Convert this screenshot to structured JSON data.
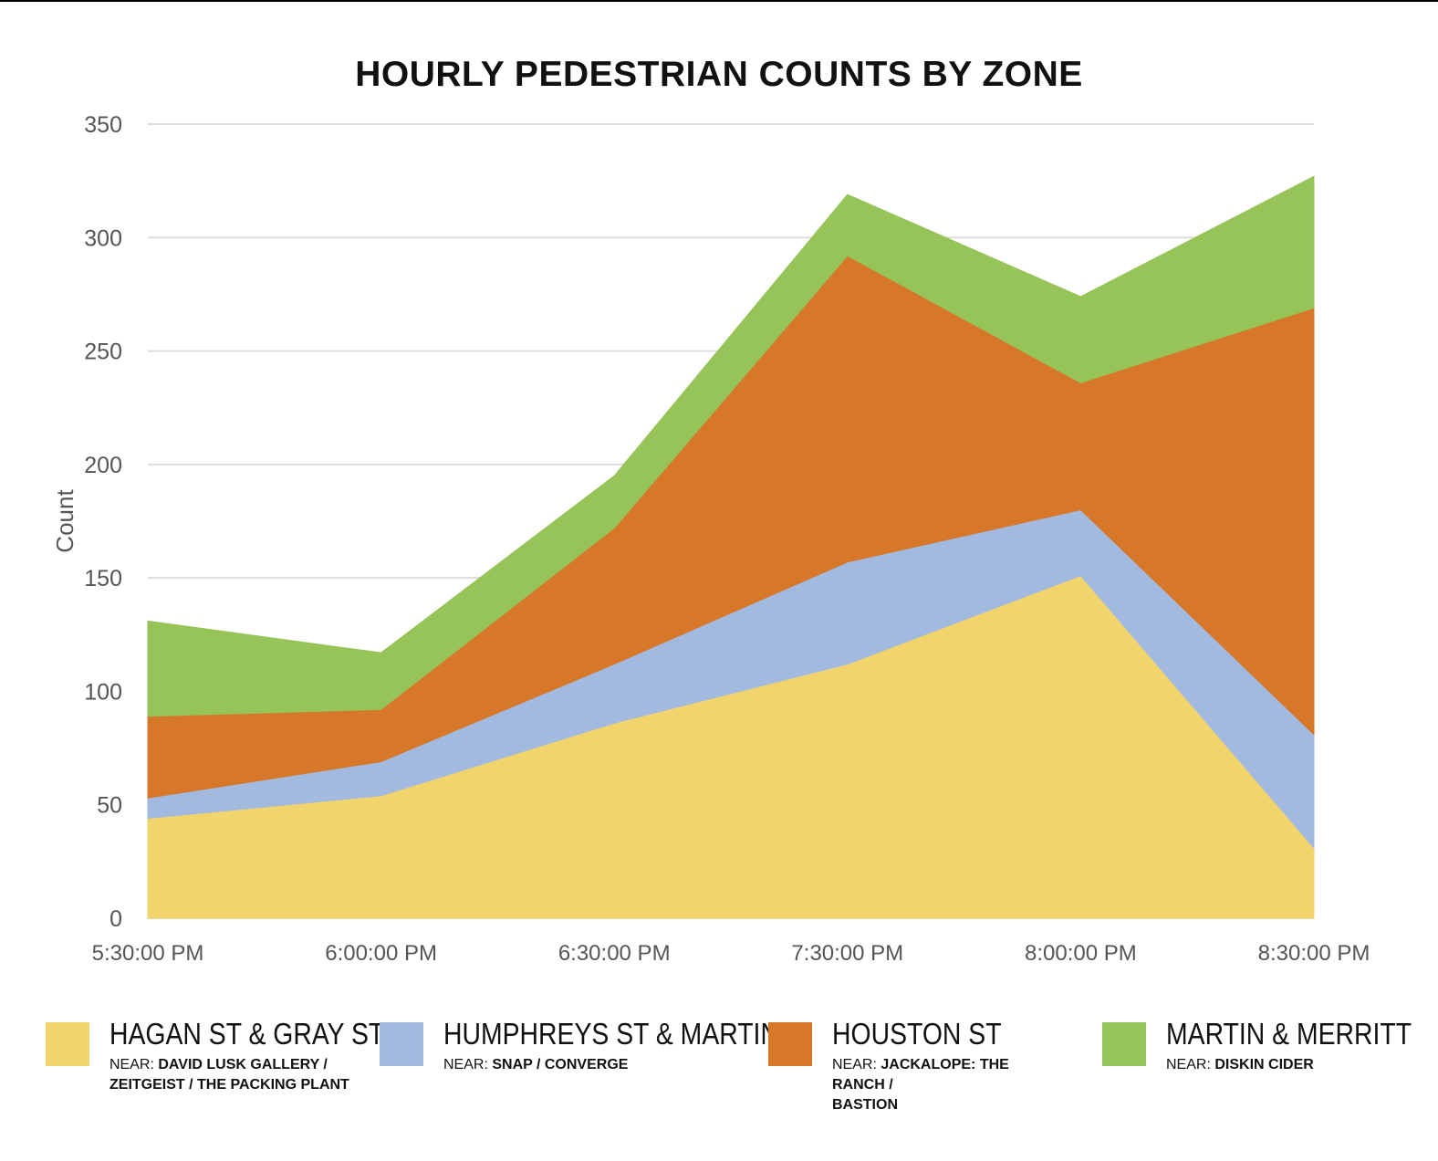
{
  "chart_data": {
    "type": "area",
    "stacked": true,
    "title": "HOURLY PEDESTRIAN COUNTS BY ZONE",
    "xlabel": "",
    "ylabel": "Count",
    "ylim": [
      0,
      350
    ],
    "yticks": [
      0,
      50,
      100,
      150,
      200,
      250,
      300,
      350
    ],
    "grid": true,
    "categories": [
      "5:30:00 PM",
      "6:00:00 PM",
      "6:30:00 PM",
      "7:30:00 PM",
      "8:00:00 PM",
      "8:30:00 PM"
    ],
    "series": [
      {
        "name": "HAGAN ST & GRAY ST",
        "color": "#f2d46c",
        "values": [
          44,
          54,
          86,
          112,
          151,
          31
        ]
      },
      {
        "name": "HUMPHREYS ST & MARTIN",
        "color": "#a2badf",
        "values": [
          9,
          15,
          26,
          45,
          29,
          50
        ]
      },
      {
        "name": "HOUSTON ST",
        "color": "#d6772a",
        "values": [
          36,
          23,
          60,
          135,
          56,
          188
        ]
      },
      {
        "name": "MARTIN & MERRITT",
        "color": "#97c458",
        "values": [
          42,
          25,
          23,
          27,
          38,
          58
        ]
      }
    ]
  },
  "legend": [
    {
      "name": "HAGAN ST & GRAY ST",
      "near_prefix": "NEAR:",
      "near_line1": "DAVID LUSK GALLERY /",
      "near_line2": "ZEITGEIST / THE PACKING PLANT",
      "color": "#f2d46c"
    },
    {
      "name": "HUMPHREYS ST & MARTIN",
      "near_prefix": "NEAR:",
      "near_line1": "SNAP / CONVERGE",
      "near_line2": "",
      "color": "#a2badf"
    },
    {
      "name": "HOUSTON ST",
      "near_prefix": "NEAR:",
      "near_line1": "JACKALOPE: THE RANCH /",
      "near_line2": "BASTION",
      "color": "#d6772a"
    },
    {
      "name": "MARTIN & MERRITT",
      "near_prefix": "NEAR:",
      "near_line1": "DISKIN CIDER",
      "near_line2": "",
      "color": "#97c458"
    }
  ]
}
